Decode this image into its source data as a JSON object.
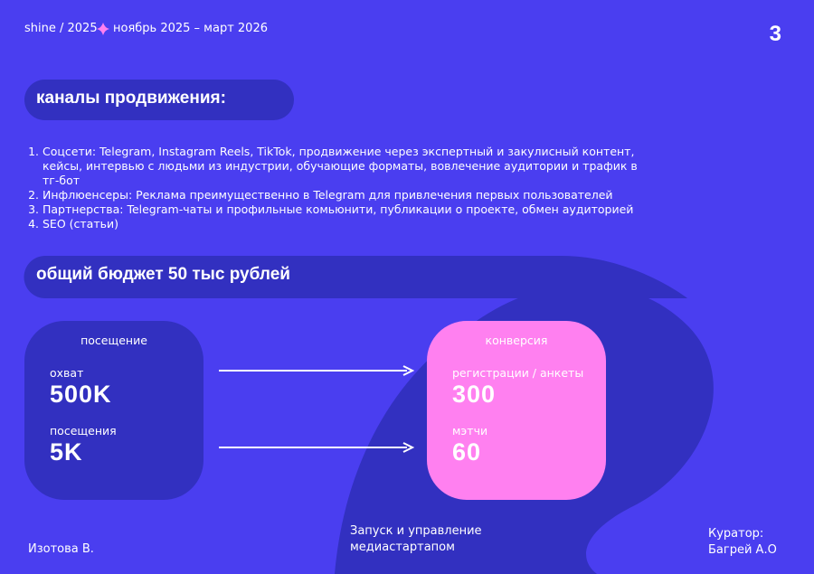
{
  "header": {
    "brand": "shine / 2025",
    "period": "ноябрь 2025 – март 2026",
    "page": "3"
  },
  "channels": {
    "title": "каналы продвижения:",
    "items": [
      "Соцсети: Telegram, Instagram Reels, TikTok, продвижение через экспертный и закулисный контент, кейсы, интервью с людьми из индустрии, обучающие форматы, вовлечение аудитории и трафик в тг-бот",
      "Инфлюенсеры: Реклама преимущественно в Telegram для привлечения первых пользователей",
      "Партнерства: Telegram-чаты и профильные комьюнити, публикации о проекте, обмен аудиторией",
      "SEO (статьи)"
    ]
  },
  "budget": {
    "title": "общий бюджет 50 тыс рублей"
  },
  "visits": {
    "title": "посещение",
    "metrics": [
      {
        "label": "охват",
        "value": "500K"
      },
      {
        "label": "посещения",
        "value": "5K"
      }
    ]
  },
  "conversion": {
    "title": "конверсия",
    "metrics": [
      {
        "label": "регистрации / анкеты",
        "value": "300"
      },
      {
        "label": "мэтчи",
        "value": "60"
      }
    ]
  },
  "footer": {
    "author": "Изотова В.",
    "project": [
      "Запуск и управление",
      "медиастартапом"
    ],
    "curator": [
      "Куратор:",
      "Багрей А.О"
    ]
  }
}
